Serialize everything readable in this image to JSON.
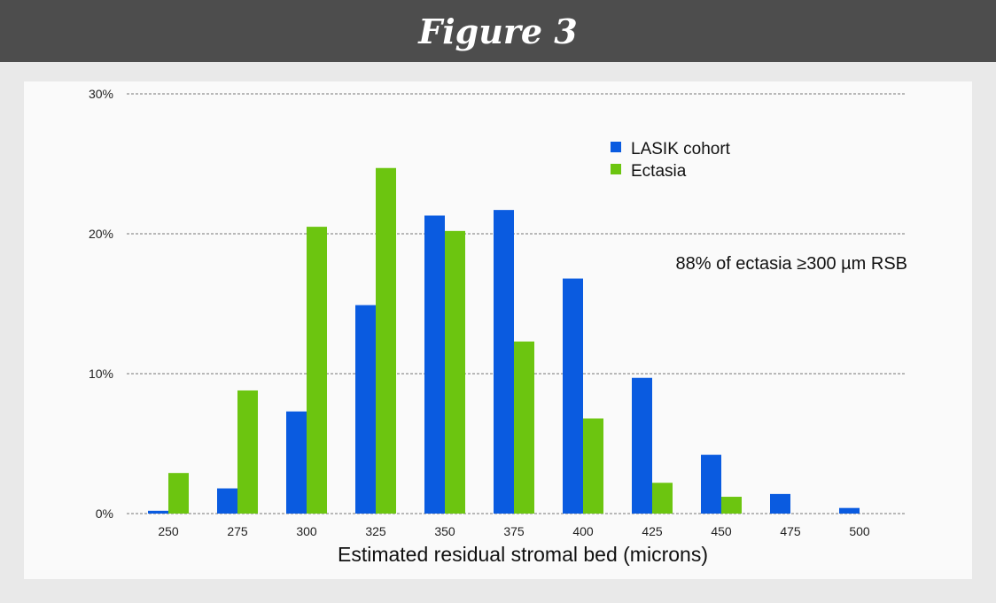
{
  "header": {
    "title": "Figure 3"
  },
  "colors": {
    "lasik": "#0a5be0",
    "ectasia": "#6cc510",
    "grid": "#777777",
    "header_bg": "#4d4d4d"
  },
  "chart_data": {
    "type": "bar",
    "title": "",
    "xlabel": "Estimated residual stromal bed (microns)",
    "ylabel": "",
    "categories": [
      "250",
      "275",
      "300",
      "325",
      "350",
      "375",
      "400",
      "425",
      "450",
      "475",
      "500"
    ],
    "series": [
      {
        "name": "LASIK cohort",
        "values": [
          0.2,
          1.8,
          7.3,
          14.9,
          21.3,
          21.7,
          16.8,
          9.7,
          4.2,
          1.4,
          0.4
        ]
      },
      {
        "name": "Ectasia",
        "values": [
          2.9,
          8.8,
          20.5,
          24.7,
          20.2,
          12.3,
          6.8,
          2.2,
          1.2,
          0,
          0
        ]
      }
    ],
    "ylim": [
      0,
      30
    ],
    "yticks": [
      "0%",
      "10%",
      "20%",
      "30%"
    ],
    "grid": true,
    "legend": "top-right",
    "annotation": "88% of ectasia ≥300 µm RSB"
  }
}
